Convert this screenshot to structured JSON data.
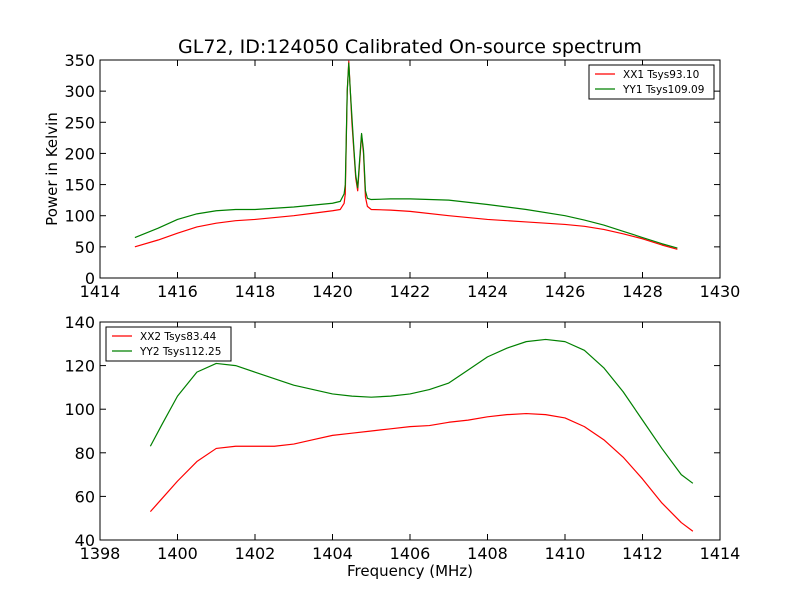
{
  "chart_data": [
    {
      "type": "line",
      "title": "GL72, ID:124050 Calibrated On-source spectrum",
      "xlabel": "",
      "ylabel": "Power in Kelvin",
      "xlim": [
        1414,
        1430
      ],
      "ylim": [
        0,
        350
      ],
      "xticks": [
        "1414",
        "1416",
        "1418",
        "1420",
        "1422",
        "1424",
        "1426",
        "1428",
        "1430"
      ],
      "yticks": [
        "0",
        "50",
        "100",
        "150",
        "200",
        "250",
        "300",
        "350"
      ],
      "grid": false,
      "legend_position": "top-right",
      "series": [
        {
          "name": "XX1 Tsys93.10",
          "color": "#ff0000",
          "x": [
            1414.9,
            1415.5,
            1416.0,
            1416.5,
            1417.0,
            1417.5,
            1418.0,
            1418.5,
            1419.0,
            1419.5,
            1420.0,
            1420.2,
            1420.3,
            1420.33,
            1420.38,
            1420.42,
            1420.46,
            1420.5,
            1420.55,
            1420.6,
            1420.65,
            1420.7,
            1420.75,
            1420.8,
            1420.85,
            1420.9,
            1421.0,
            1421.5,
            1422.0,
            1423.0,
            1424.0,
            1425.0,
            1426.0,
            1426.5,
            1427.0,
            1427.5,
            1428.0,
            1428.5,
            1428.9
          ],
          "y": [
            50,
            61,
            72,
            82,
            88,
            92,
            94,
            97,
            100,
            104,
            108,
            110,
            120,
            135,
            300,
            348,
            300,
            250,
            205,
            160,
            140,
            185,
            230,
            200,
            130,
            115,
            110,
            109,
            107,
            100,
            94,
            90,
            86,
            83,
            78,
            71,
            63,
            53,
            46
          ]
        },
        {
          "name": "YY1 Tsys109.09",
          "color": "#008000",
          "x": [
            1414.9,
            1415.5,
            1416.0,
            1416.5,
            1417.0,
            1417.5,
            1418.0,
            1418.5,
            1419.0,
            1419.5,
            1420.0,
            1420.2,
            1420.3,
            1420.33,
            1420.38,
            1420.42,
            1420.46,
            1420.5,
            1420.55,
            1420.6,
            1420.65,
            1420.7,
            1420.75,
            1420.8,
            1420.85,
            1420.9,
            1421.0,
            1421.5,
            1422.0,
            1423.0,
            1424.0,
            1425.0,
            1426.0,
            1426.5,
            1427.0,
            1427.5,
            1428.0,
            1428.5,
            1428.9
          ],
          "y": [
            65,
            80,
            94,
            103,
            108,
            110,
            110,
            112,
            114,
            117,
            120,
            123,
            135,
            150,
            300,
            345,
            300,
            260,
            210,
            165,
            145,
            190,
            232,
            205,
            140,
            128,
            126,
            127,
            127,
            125,
            118,
            110,
            100,
            93,
            85,
            75,
            65,
            55,
            48
          ]
        }
      ]
    },
    {
      "type": "line",
      "title": "",
      "xlabel": "Frequency (MHz)",
      "ylabel": "",
      "xlim": [
        1398,
        1414
      ],
      "ylim": [
        40,
        140
      ],
      "xticks": [
        "1398",
        "1400",
        "1402",
        "1404",
        "1406",
        "1408",
        "1410",
        "1412",
        "1414"
      ],
      "yticks": [
        "40",
        "60",
        "80",
        "100",
        "120",
        "140"
      ],
      "grid": false,
      "legend_position": "top-left",
      "series": [
        {
          "name": "XX2 Tsys83.44",
          "color": "#ff0000",
          "x": [
            1399.3,
            1399.6,
            1400.0,
            1400.5,
            1401.0,
            1401.5,
            1402.0,
            1402.5,
            1403.0,
            1403.5,
            1404.0,
            1404.5,
            1405.0,
            1405.5,
            1406.0,
            1406.5,
            1407.0,
            1407.5,
            1408.0,
            1408.5,
            1409.0,
            1409.5,
            1410.0,
            1410.5,
            1411.0,
            1411.5,
            1412.0,
            1412.5,
            1413.0,
            1413.3
          ],
          "y": [
            53,
            59,
            67,
            76,
            82,
            83,
            83,
            83,
            84,
            86,
            88,
            89,
            90,
            91,
            92,
            92.5,
            94,
            95,
            96.5,
            97.5,
            98,
            97.5,
            96,
            92,
            86,
            78,
            68,
            57,
            48,
            44
          ]
        },
        {
          "name": "YY2 Tsys112.25",
          "color": "#008000",
          "x": [
            1399.3,
            1399.6,
            1400.0,
            1400.5,
            1401.0,
            1401.5,
            1402.0,
            1402.5,
            1403.0,
            1403.5,
            1404.0,
            1404.5,
            1405.0,
            1405.5,
            1406.0,
            1406.5,
            1407.0,
            1407.5,
            1408.0,
            1408.5,
            1409.0,
            1409.5,
            1410.0,
            1410.5,
            1411.0,
            1411.5,
            1412.0,
            1412.5,
            1413.0,
            1413.3
          ],
          "y": [
            83,
            93,
            106,
            117,
            121,
            120,
            117,
            114,
            111,
            109,
            107,
            106,
            105.5,
            106,
            107,
            109,
            112,
            118,
            124,
            128,
            131,
            132,
            131,
            127,
            119,
            108,
            95,
            82,
            70,
            66
          ]
        }
      ]
    }
  ]
}
